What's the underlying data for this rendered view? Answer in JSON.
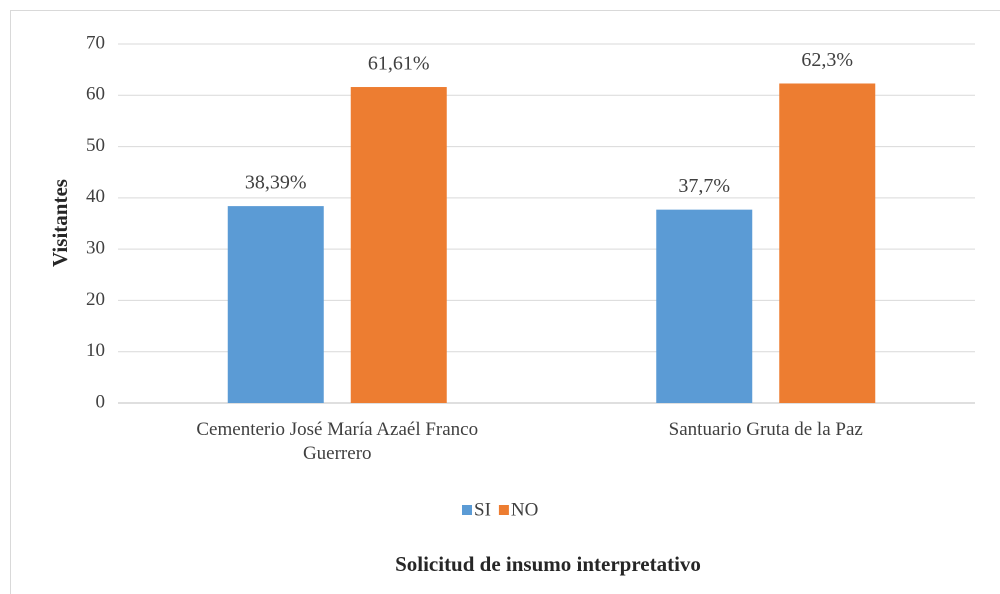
{
  "chart_data": {
    "type": "bar",
    "categories": [
      "Cementerio José María Azaél Franco Guerrero",
      "Santuario Gruta de la Paz"
    ],
    "series": [
      {
        "name": "SI",
        "color": "#5b9bd5",
        "values": [
          38.39,
          37.7
        ],
        "value_labels": [
          "38,39%",
          "37,7%"
        ]
      },
      {
        "name": "NO",
        "color": "#ed7d31",
        "values": [
          61.61,
          62.3
        ],
        "value_labels": [
          "61,61%",
          "62,3%"
        ]
      }
    ],
    "ylabel": "Visitantes",
    "xlabel": "Solicitud de insumo interpretativo",
    "ylim": [
      0,
      70
    ],
    "yticks": [
      0,
      10,
      20,
      30,
      40,
      50,
      60,
      70
    ],
    "grid": true,
    "legend": "bottom"
  }
}
